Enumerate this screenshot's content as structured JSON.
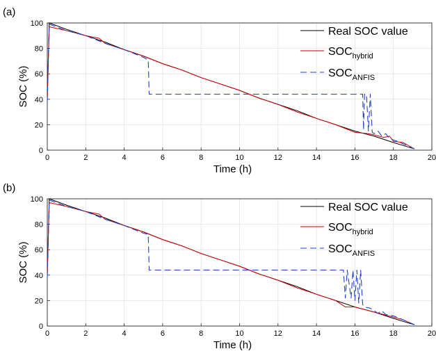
{
  "chart_data": [
    {
      "type": "line",
      "panel_label": "(a)",
      "xlabel": "Time (h)",
      "ylabel": "SOC (%)",
      "xlim": [
        0,
        20
      ],
      "ylim": [
        0,
        100
      ],
      "xticks": [
        0,
        2,
        4,
        6,
        8,
        10,
        12,
        14,
        16,
        18,
        20
      ],
      "yticks": [
        0,
        20,
        40,
        60,
        80,
        100
      ],
      "grid": true,
      "legend_position": "top-right",
      "legend": [
        {
          "label": "Real SOC value",
          "sub": ""
        },
        {
          "label": "SOC",
          "sub": "hybrid"
        },
        {
          "label": "SOC",
          "sub": "ANFIS"
        }
      ],
      "series": [
        {
          "name": "Real SOC value",
          "color": "#000000",
          "dash": "none",
          "points": [
            [
              0,
              40
            ],
            [
              0.1,
              100
            ],
            [
              1,
              95
            ],
            [
              2,
              90
            ],
            [
              3,
              85
            ],
            [
              4,
              79
            ],
            [
              5,
              74
            ],
            [
              6,
              68
            ],
            [
              7,
              63
            ],
            [
              8,
              57
            ],
            [
              9,
              52
            ],
            [
              10,
              47
            ],
            [
              11,
              41
            ],
            [
              12,
              36
            ],
            [
              13,
              31
            ],
            [
              14,
              25
            ],
            [
              15,
              20
            ],
            [
              16,
              15
            ],
            [
              17,
              11
            ],
            [
              18,
              6
            ],
            [
              19.1,
              1
            ]
          ]
        },
        {
          "name": "SOC hybrid",
          "color": "#cc0000",
          "dash": "none",
          "points": [
            [
              0,
              40
            ],
            [
              0.1,
              97
            ],
            [
              1,
              94
            ],
            [
              2,
              90
            ],
            [
              2.7,
              88
            ],
            [
              3,
              84
            ],
            [
              4,
              79
            ],
            [
              5,
              74
            ],
            [
              6,
              68
            ],
            [
              7,
              63
            ],
            [
              8,
              57
            ],
            [
              9,
              52
            ],
            [
              10,
              47
            ],
            [
              11,
              41
            ],
            [
              12,
              36
            ],
            [
              13,
              30
            ],
            [
              14,
              25
            ],
            [
              15,
              20
            ],
            [
              16,
              14
            ],
            [
              16.7,
              13
            ],
            [
              17,
              12
            ],
            [
              17.5,
              10
            ],
            [
              17.8,
              11
            ],
            [
              18,
              7
            ],
            [
              18.5,
              6
            ],
            [
              19.1,
              1
            ]
          ]
        },
        {
          "name": "SOC ANFIS",
          "color": "#1f3fcc",
          "dash": "9,5",
          "points": [
            [
              0,
              38
            ],
            [
              0.1,
              99
            ],
            [
              1,
              94
            ],
            [
              2,
              90
            ],
            [
              3,
              84
            ],
            [
              4,
              79
            ],
            [
              5,
              73
            ],
            [
              5.25,
              71
            ],
            [
              5.3,
              44
            ],
            [
              16.4,
              44
            ],
            [
              16.45,
              16
            ],
            [
              16.5,
              44
            ],
            [
              16.6,
              44
            ],
            [
              16.7,
              15
            ],
            [
              16.8,
              44
            ],
            [
              16.9,
              14
            ],
            [
              17,
              13
            ],
            [
              17.2,
              15
            ],
            [
              17.4,
              11
            ],
            [
              17.6,
              13
            ],
            [
              17.8,
              9
            ],
            [
              18,
              8
            ],
            [
              18.2,
              7
            ],
            [
              18.5,
              5
            ],
            [
              18.8,
              3
            ],
            [
              19.1,
              1
            ]
          ]
        }
      ]
    },
    {
      "type": "line",
      "panel_label": "(b)",
      "xlabel": "Time (h)",
      "ylabel": "SOC (%)",
      "xlim": [
        0,
        20
      ],
      "ylim": [
        0,
        100
      ],
      "xticks": [
        0,
        2,
        4,
        6,
        8,
        10,
        12,
        14,
        16,
        18,
        20
      ],
      "yticks": [
        0,
        20,
        40,
        60,
        80,
        100
      ],
      "grid": true,
      "legend_position": "top-right",
      "legend": [
        {
          "label": "Real SOC value",
          "sub": ""
        },
        {
          "label": "SOC",
          "sub": "hybrid"
        },
        {
          "label": "SOC",
          "sub": "ANFIS"
        }
      ],
      "series": [
        {
          "name": "Real SOC value",
          "color": "#000000",
          "dash": "none",
          "points": [
            [
              0,
              40
            ],
            [
              0.1,
              100
            ],
            [
              1,
              95
            ],
            [
              2,
              90
            ],
            [
              3,
              85
            ],
            [
              4,
              79
            ],
            [
              5,
              74
            ],
            [
              6,
              68
            ],
            [
              7,
              63
            ],
            [
              8,
              57
            ],
            [
              9,
              52
            ],
            [
              10,
              47
            ],
            [
              11,
              41
            ],
            [
              12,
              36
            ],
            [
              13,
              31
            ],
            [
              14,
              25
            ],
            [
              15,
              20
            ],
            [
              16,
              15
            ],
            [
              17,
              11
            ],
            [
              18,
              6
            ],
            [
              19.1,
              1
            ]
          ]
        },
        {
          "name": "SOC hybrid",
          "color": "#cc0000",
          "dash": "none",
          "points": [
            [
              0,
              40
            ],
            [
              0.1,
              97
            ],
            [
              1,
              94
            ],
            [
              2,
              90
            ],
            [
              2.7,
              88
            ],
            [
              3,
              84
            ],
            [
              4,
              79
            ],
            [
              5,
              74
            ],
            [
              6,
              68
            ],
            [
              7,
              63
            ],
            [
              8,
              57
            ],
            [
              9,
              52
            ],
            [
              10,
              47
            ],
            [
              11,
              41
            ],
            [
              12,
              36
            ],
            [
              13,
              30
            ],
            [
              14,
              25
            ],
            [
              15,
              20
            ],
            [
              15.5,
              15
            ],
            [
              16,
              15
            ],
            [
              16.5,
              13
            ],
            [
              17,
              11
            ],
            [
              17.5,
              9
            ],
            [
              18,
              7
            ],
            [
              18.5,
              5
            ],
            [
              19.1,
              1
            ]
          ]
        },
        {
          "name": "SOC ANFIS",
          "color": "#1f3fcc",
          "dash": "9,5",
          "points": [
            [
              0,
              38
            ],
            [
              0.1,
              99
            ],
            [
              1,
              94
            ],
            [
              2,
              90
            ],
            [
              3,
              84
            ],
            [
              4,
              79
            ],
            [
              5,
              73
            ],
            [
              5.25,
              72
            ],
            [
              5.3,
              44
            ],
            [
              15.4,
              44
            ],
            [
              15.5,
              22
            ],
            [
              15.6,
              44
            ],
            [
              15.8,
              22
            ],
            [
              15.9,
              44
            ],
            [
              16.0,
              20
            ],
            [
              16.1,
              44
            ],
            [
              16.2,
              18
            ],
            [
              16.3,
              44
            ],
            [
              16.4,
              17
            ],
            [
              16.5,
              15
            ],
            [
              16.8,
              14
            ],
            [
              17,
              12
            ],
            [
              17.2,
              10
            ],
            [
              17.4,
              12
            ],
            [
              17.6,
              9
            ],
            [
              18,
              8
            ],
            [
              18.5,
              5
            ],
            [
              19.1,
              1
            ]
          ]
        }
      ]
    }
  ]
}
